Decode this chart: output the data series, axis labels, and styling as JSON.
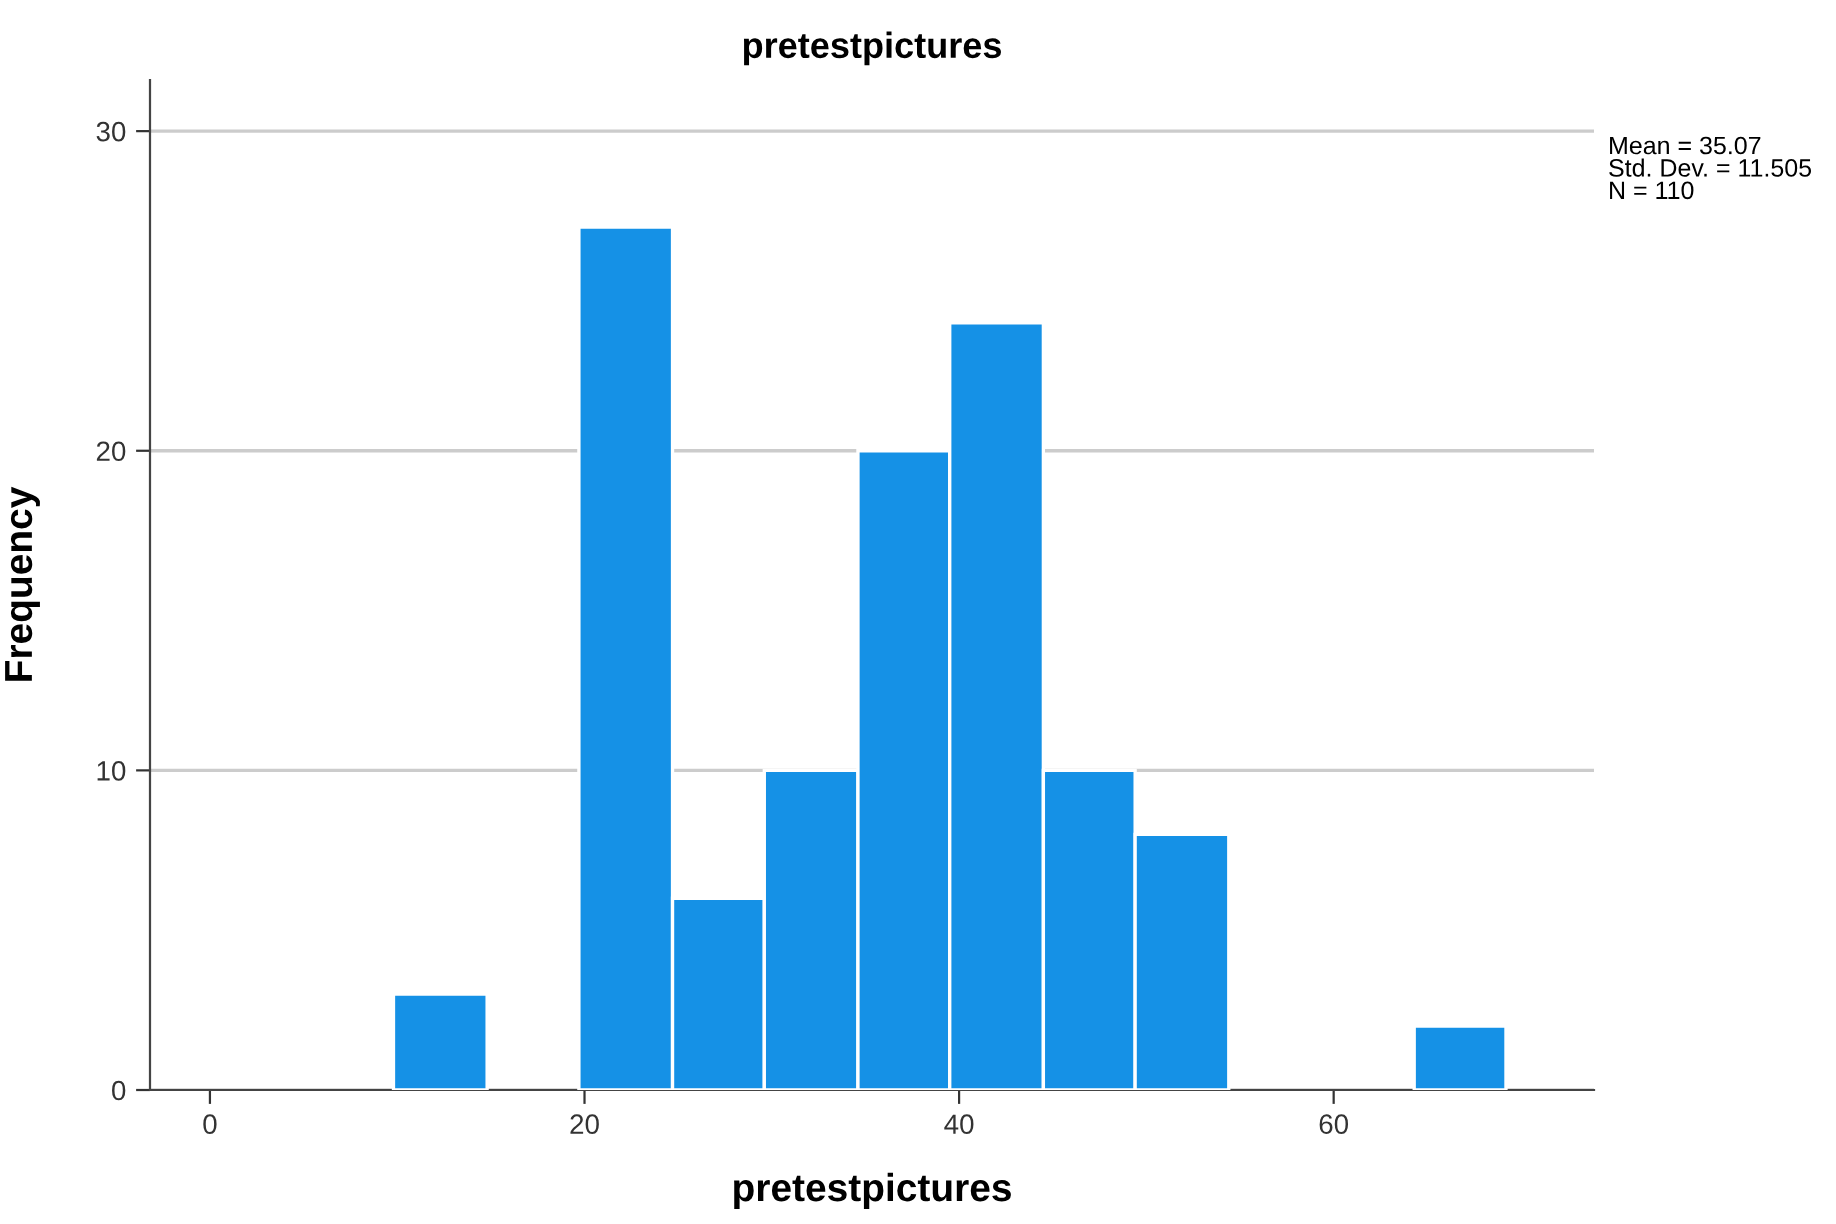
{
  "chart_data": {
    "type": "histogram",
    "title": "pretestpictures",
    "xlabel": "pretestpictures",
    "ylabel": "Frequency",
    "bins": [
      9.8,
      14.8,
      19.7,
      24.7,
      29.6,
      34.6,
      39.5,
      44.5,
      49.4,
      54.4,
      64.3,
      69.2
    ],
    "values": [
      3,
      0,
      27,
      6,
      10,
      20,
      24,
      10,
      8,
      0,
      2
    ],
    "color": "#1591e6",
    "xlim": [
      -3.2,
      73.9
    ],
    "xticks": [
      0,
      20,
      40,
      60
    ],
    "ylim": [
      0,
      31.6
    ],
    "yticks": [
      0,
      10,
      20,
      30
    ],
    "grid": "y",
    "annotations": [
      "Mean = 35.07\nStd. Dev. = 11.505\nN = 110"
    ]
  }
}
